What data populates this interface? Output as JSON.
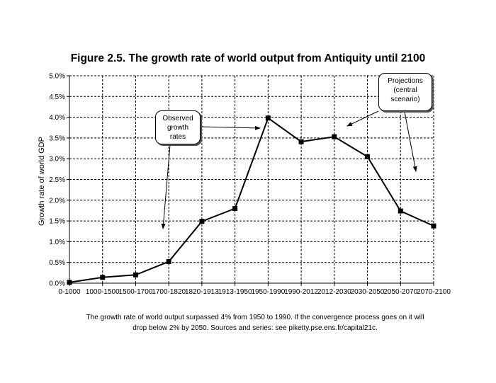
{
  "title": "Figure 2.5. The growth rate of world output from Antiquity until 2100",
  "caption": {
    "line1": "The growth rate of world output surpassed 4% from 1950 to 1990. If the convergence process goes on it will",
    "line2": "drop below 2% by 2050. Sources and series: see piketty.pse.ens.fr/capital21c."
  },
  "annotations": {
    "observed": [
      "Observed",
      "growth",
      "rates"
    ],
    "projections": [
      "Projections",
      "(central",
      "scenario)"
    ]
  },
  "colors": {
    "line": "#000000",
    "grid": "#000000"
  },
  "chart_data": {
    "type": "line",
    "title": "Figure 2.5. The growth rate of world output from Antiquity until 2100",
    "xlabel": "",
    "ylabel": "Growth rate of world GDP",
    "categories": [
      "0-1000",
      "1000-1500",
      "1500-1700",
      "1700-1820",
      "1820-1913",
      "1913-1950",
      "1950-1990",
      "1990-2012",
      "2012-2030",
      "2030-2050",
      "2050-2070",
      "2070-2100"
    ],
    "values": [
      0.02,
      0.14,
      0.2,
      0.52,
      1.49,
      1.8,
      3.98,
      3.41,
      3.53,
      3.05,
      1.74,
      1.38
    ],
    "ylim": [
      0,
      5
    ],
    "yticks": [
      "0.0%",
      "0.5%",
      "1.0%",
      "1.5%",
      "2.0%",
      "2.5%",
      "3.0%",
      "3.5%",
      "4.0%",
      "4.5%",
      "5.0%"
    ],
    "grid": true,
    "legend": "none",
    "marker": "square"
  }
}
